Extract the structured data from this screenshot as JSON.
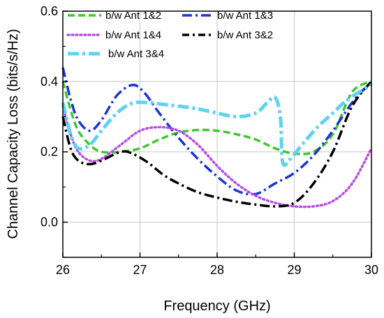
{
  "chart_data": {
    "type": "line",
    "xlabel": "Frequency (GHz)",
    "ylabel": "Channel Capacity Loss (bits/s/Hz)",
    "xlim": [
      26,
      30
    ],
    "ylim": [
      -0.1,
      0.6
    ],
    "x_ticks": [
      "26",
      "27",
      "28",
      "29",
      "30"
    ],
    "y_ticks": [
      "0.0",
      "0.2",
      "0.4",
      "0.6"
    ],
    "grid": true,
    "legend_position": "top",
    "series": [
      {
        "name": "b/w Ant 1&2",
        "color": "#3ec82d",
        "dash": "dashed",
        "points": [
          [
            26.0,
            0.4
          ],
          [
            26.1,
            0.32
          ],
          [
            26.2,
            0.26
          ],
          [
            26.35,
            0.22
          ],
          [
            26.5,
            0.2
          ],
          [
            26.75,
            0.2
          ],
          [
            27.0,
            0.21
          ],
          [
            27.25,
            0.235
          ],
          [
            27.5,
            0.255
          ],
          [
            27.75,
            0.262
          ],
          [
            28.0,
            0.26
          ],
          [
            28.25,
            0.25
          ],
          [
            28.5,
            0.235
          ],
          [
            28.75,
            0.21
          ],
          [
            29.0,
            0.195
          ],
          [
            29.25,
            0.2
          ],
          [
            29.5,
            0.25
          ],
          [
            29.75,
            0.37
          ],
          [
            30.0,
            0.4
          ]
        ]
      },
      {
        "name": "b/w Ant 1&3",
        "color": "#1c33d6",
        "dash": "dashdot",
        "points": [
          [
            26.0,
            0.44
          ],
          [
            26.1,
            0.35
          ],
          [
            26.2,
            0.29
          ],
          [
            26.35,
            0.26
          ],
          [
            26.5,
            0.29
          ],
          [
            26.7,
            0.36
          ],
          [
            26.9,
            0.39
          ],
          [
            27.05,
            0.37
          ],
          [
            27.25,
            0.31
          ],
          [
            27.5,
            0.24
          ],
          [
            27.75,
            0.18
          ],
          [
            28.0,
            0.13
          ],
          [
            28.25,
            0.09
          ],
          [
            28.5,
            0.08
          ],
          [
            28.75,
            0.11
          ],
          [
            29.0,
            0.14
          ],
          [
            29.25,
            0.19
          ],
          [
            29.5,
            0.26
          ],
          [
            29.75,
            0.34
          ],
          [
            30.0,
            0.4
          ]
        ]
      },
      {
        "name": "b/w Ant 1&4",
        "color": "#b84de4",
        "dash": "dotted",
        "points": [
          [
            26.0,
            0.33
          ],
          [
            26.1,
            0.25
          ],
          [
            26.2,
            0.2
          ],
          [
            26.35,
            0.175
          ],
          [
            26.5,
            0.18
          ],
          [
            26.75,
            0.22
          ],
          [
            27.0,
            0.26
          ],
          [
            27.25,
            0.27
          ],
          [
            27.5,
            0.26
          ],
          [
            27.75,
            0.22
          ],
          [
            28.0,
            0.16
          ],
          [
            28.25,
            0.11
          ],
          [
            28.5,
            0.075
          ],
          [
            28.75,
            0.055
          ],
          [
            29.0,
            0.045
          ],
          [
            29.25,
            0.045
          ],
          [
            29.5,
            0.06
          ],
          [
            29.75,
            0.11
          ],
          [
            30.0,
            0.21
          ]
        ]
      },
      {
        "name": "b/w Ant 3&2",
        "color": "#000000",
        "dash": "dashdot",
        "points": [
          [
            26.0,
            0.3
          ],
          [
            26.1,
            0.21
          ],
          [
            26.2,
            0.175
          ],
          [
            26.35,
            0.165
          ],
          [
            26.5,
            0.175
          ],
          [
            26.75,
            0.2
          ],
          [
            26.9,
            0.195
          ],
          [
            27.1,
            0.17
          ],
          [
            27.3,
            0.135
          ],
          [
            27.5,
            0.11
          ],
          [
            27.75,
            0.085
          ],
          [
            28.0,
            0.07
          ],
          [
            28.25,
            0.058
          ],
          [
            28.5,
            0.05
          ],
          [
            28.75,
            0.045
          ],
          [
            29.0,
            0.055
          ],
          [
            29.25,
            0.11
          ],
          [
            29.5,
            0.2
          ],
          [
            29.75,
            0.33
          ],
          [
            30.0,
            0.4
          ]
        ]
      },
      {
        "name": "b/w Ant 3&4",
        "color": "#5fd2f4",
        "dash": "dashdot",
        "points": [
          [
            26.0,
            0.34
          ],
          [
            26.1,
            0.25
          ],
          [
            26.2,
            0.21
          ],
          [
            26.35,
            0.22
          ],
          [
            26.5,
            0.26
          ],
          [
            26.7,
            0.31
          ],
          [
            26.9,
            0.338
          ],
          [
            27.1,
            0.34
          ],
          [
            27.3,
            0.335
          ],
          [
            27.5,
            0.33
          ],
          [
            27.75,
            0.322
          ],
          [
            28.0,
            0.31
          ],
          [
            28.25,
            0.3
          ],
          [
            28.5,
            0.31
          ],
          [
            28.65,
            0.34
          ],
          [
            28.75,
            0.355
          ],
          [
            28.82,
            0.3
          ],
          [
            28.85,
            0.17
          ],
          [
            28.95,
            0.18
          ],
          [
            29.1,
            0.22
          ],
          [
            29.3,
            0.27
          ],
          [
            29.5,
            0.31
          ],
          [
            29.7,
            0.35
          ],
          [
            30.0,
            0.39
          ]
        ]
      }
    ]
  }
}
